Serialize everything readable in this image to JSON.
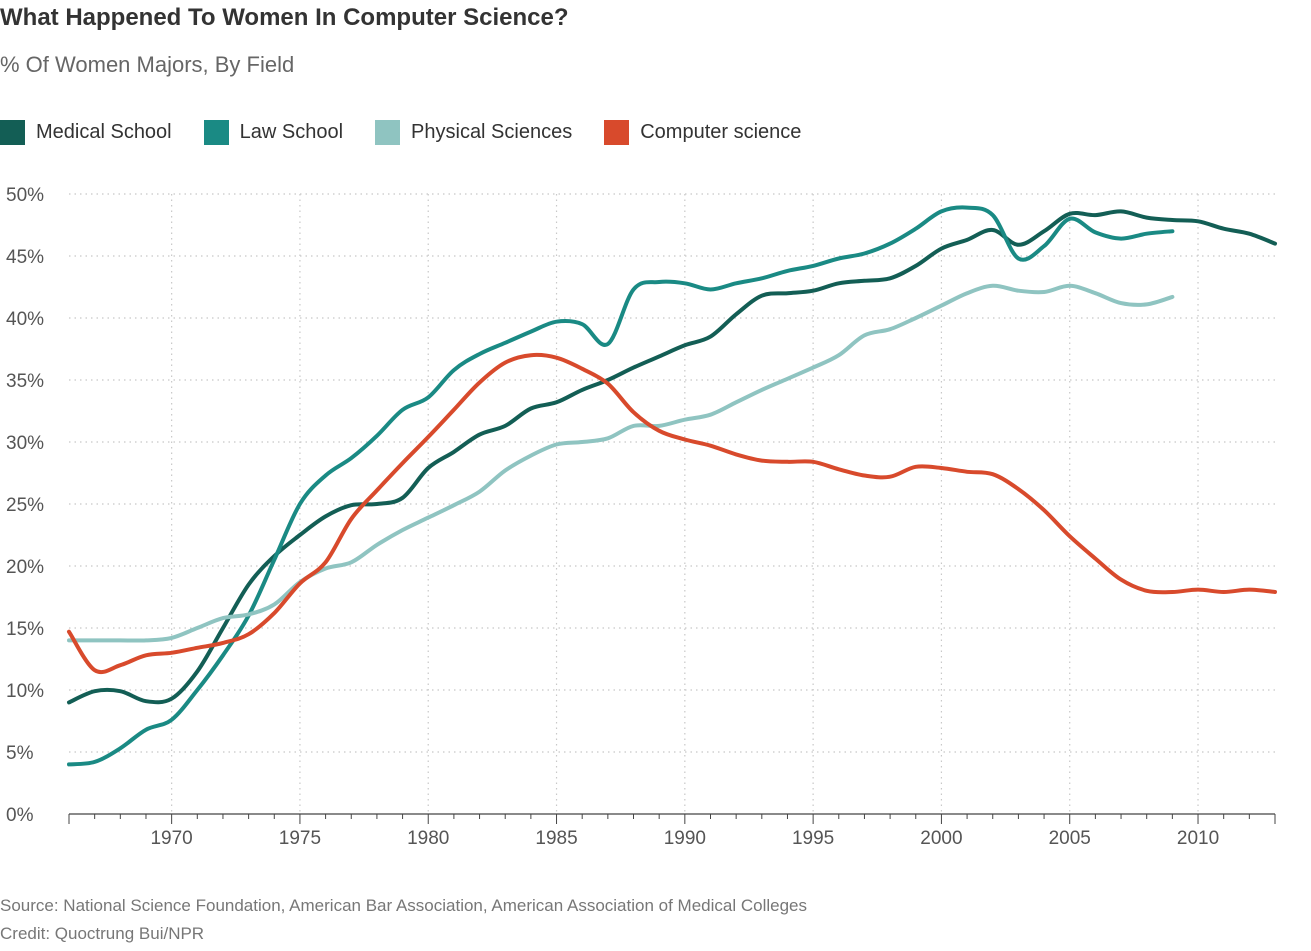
{
  "header": {
    "title": "What Happened To Women In Computer Science?",
    "subtitle": "% Of Women Majors, By Field"
  },
  "footer": {
    "source": "Source: National Science Foundation, American Bar Association, American Association of Medical Colleges",
    "credit": "Credit: Quoctrung Bui/NPR"
  },
  "chart_data": {
    "type": "line",
    "title": "What Happened To Women In Computer Science?",
    "subtitle": "% Of Women Majors, By Field",
    "xlabel": "",
    "ylabel": "",
    "xlim": [
      1966,
      2013
    ],
    "ylim": [
      0,
      50
    ],
    "x_ticks": [
      1970,
      1975,
      1980,
      1985,
      1990,
      1995,
      2000,
      2005,
      2010
    ],
    "y_ticks": [
      0,
      5,
      10,
      15,
      20,
      25,
      30,
      35,
      40,
      45,
      50
    ],
    "y_tick_labels": [
      "0%",
      "5%",
      "10%",
      "15%",
      "20%",
      "25%",
      "30%",
      "35%",
      "40%",
      "45%",
      "50%"
    ],
    "grid": true,
    "legend_position": "top-left",
    "series": [
      {
        "name": "Medical School",
        "color": "#135e55",
        "points": [
          [
            1966,
            9.0
          ],
          [
            1967,
            9.9
          ],
          [
            1968,
            9.9
          ],
          [
            1969,
            9.1
          ],
          [
            1970,
            9.3
          ],
          [
            1971,
            11.5
          ],
          [
            1972,
            15.0
          ],
          [
            1973,
            18.5
          ],
          [
            1974,
            20.8
          ],
          [
            1975,
            22.5
          ],
          [
            1976,
            24.0
          ],
          [
            1977,
            24.9
          ],
          [
            1978,
            25.0
          ],
          [
            1979,
            25.5
          ],
          [
            1980,
            27.9
          ],
          [
            1981,
            29.2
          ],
          [
            1982,
            30.6
          ],
          [
            1983,
            31.3
          ],
          [
            1984,
            32.7
          ],
          [
            1985,
            33.2
          ],
          [
            1986,
            34.2
          ],
          [
            1987,
            35.0
          ],
          [
            1988,
            36.0
          ],
          [
            1989,
            36.9
          ],
          [
            1990,
            37.8
          ],
          [
            1991,
            38.5
          ],
          [
            1992,
            40.3
          ],
          [
            1993,
            41.8
          ],
          [
            1994,
            42.0
          ],
          [
            1995,
            42.2
          ],
          [
            1996,
            42.8
          ],
          [
            1997,
            43.0
          ],
          [
            1998,
            43.2
          ],
          [
            1999,
            44.2
          ],
          [
            2000,
            45.6
          ],
          [
            2001,
            46.3
          ],
          [
            2002,
            47.1
          ],
          [
            2003,
            45.9
          ],
          [
            2004,
            47.0
          ],
          [
            2005,
            48.4
          ],
          [
            2006,
            48.3
          ],
          [
            2007,
            48.6
          ],
          [
            2008,
            48.1
          ],
          [
            2009,
            47.9
          ],
          [
            2010,
            47.8
          ],
          [
            2011,
            47.2
          ],
          [
            2012,
            46.8
          ],
          [
            2013,
            46.0
          ]
        ]
      },
      {
        "name": "Law School",
        "color": "#1a8a84",
        "points": [
          [
            1966,
            4.0
          ],
          [
            1967,
            4.2
          ],
          [
            1968,
            5.3
          ],
          [
            1969,
            6.8
          ],
          [
            1970,
            7.6
          ],
          [
            1971,
            10.0
          ],
          [
            1972,
            12.8
          ],
          [
            1973,
            16.0
          ],
          [
            1974,
            20.5
          ],
          [
            1975,
            25.0
          ],
          [
            1976,
            27.3
          ],
          [
            1977,
            28.7
          ],
          [
            1978,
            30.5
          ],
          [
            1979,
            32.6
          ],
          [
            1980,
            33.6
          ],
          [
            1981,
            35.8
          ],
          [
            1982,
            37.1
          ],
          [
            1983,
            38.0
          ],
          [
            1984,
            38.9
          ],
          [
            1985,
            39.7
          ],
          [
            1986,
            39.5
          ],
          [
            1987,
            37.9
          ],
          [
            1988,
            42.3
          ],
          [
            1989,
            42.9
          ],
          [
            1990,
            42.8
          ],
          [
            1991,
            42.3
          ],
          [
            1992,
            42.8
          ],
          [
            1993,
            43.2
          ],
          [
            1994,
            43.8
          ],
          [
            1995,
            44.2
          ],
          [
            1996,
            44.8
          ],
          [
            1997,
            45.2
          ],
          [
            1998,
            46.0
          ],
          [
            1999,
            47.2
          ],
          [
            2000,
            48.6
          ],
          [
            2001,
            48.9
          ],
          [
            2002,
            48.3
          ],
          [
            2003,
            44.8
          ],
          [
            2004,
            45.8
          ],
          [
            2005,
            48.0
          ],
          [
            2006,
            46.9
          ],
          [
            2007,
            46.4
          ],
          [
            2008,
            46.8
          ],
          [
            2009,
            47.0
          ]
        ]
      },
      {
        "name": "Physical Sciences",
        "color": "#8fc4c1",
        "points": [
          [
            1966,
            14.0
          ],
          [
            1967,
            14.0
          ],
          [
            1968,
            14.0
          ],
          [
            1969,
            14.0
          ],
          [
            1970,
            14.2
          ],
          [
            1971,
            15.0
          ],
          [
            1972,
            15.8
          ],
          [
            1973,
            16.1
          ],
          [
            1974,
            16.9
          ],
          [
            1975,
            18.7
          ],
          [
            1976,
            19.8
          ],
          [
            1977,
            20.3
          ],
          [
            1978,
            21.7
          ],
          [
            1979,
            22.9
          ],
          [
            1980,
            23.9
          ],
          [
            1981,
            24.9
          ],
          [
            1982,
            26.0
          ],
          [
            1983,
            27.7
          ],
          [
            1984,
            28.9
          ],
          [
            1985,
            29.8
          ],
          [
            1986,
            30.0
          ],
          [
            1987,
            30.3
          ],
          [
            1988,
            31.3
          ],
          [
            1989,
            31.3
          ],
          [
            1990,
            31.8
          ],
          [
            1991,
            32.2
          ],
          [
            1992,
            33.2
          ],
          [
            1993,
            34.2
          ],
          [
            1994,
            35.1
          ],
          [
            1995,
            36.0
          ],
          [
            1996,
            37.0
          ],
          [
            1997,
            38.6
          ],
          [
            1998,
            39.1
          ],
          [
            1999,
            40.0
          ],
          [
            2000,
            41.0
          ],
          [
            2001,
            42.0
          ],
          [
            2002,
            42.6
          ],
          [
            2003,
            42.2
          ],
          [
            2004,
            42.1
          ],
          [
            2005,
            42.6
          ],
          [
            2006,
            42.0
          ],
          [
            2007,
            41.2
          ],
          [
            2008,
            41.1
          ],
          [
            2009,
            41.7
          ]
        ]
      },
      {
        "name": "Computer science",
        "color": "#d84a2c",
        "points": [
          [
            1966,
            14.7
          ],
          [
            1967,
            11.6
          ],
          [
            1968,
            12.0
          ],
          [
            1969,
            12.8
          ],
          [
            1970,
            13.0
          ],
          [
            1971,
            13.4
          ],
          [
            1972,
            13.8
          ],
          [
            1973,
            14.5
          ],
          [
            1974,
            16.2
          ],
          [
            1975,
            18.6
          ],
          [
            1976,
            20.3
          ],
          [
            1977,
            23.8
          ],
          [
            1978,
            26.1
          ],
          [
            1979,
            28.3
          ],
          [
            1980,
            30.4
          ],
          [
            1981,
            32.6
          ],
          [
            1982,
            34.8
          ],
          [
            1983,
            36.4
          ],
          [
            1984,
            37.0
          ],
          [
            1985,
            36.8
          ],
          [
            1986,
            35.9
          ],
          [
            1987,
            34.7
          ],
          [
            1988,
            32.4
          ],
          [
            1989,
            30.9
          ],
          [
            1990,
            30.2
          ],
          [
            1991,
            29.7
          ],
          [
            1992,
            29.0
          ],
          [
            1993,
            28.5
          ],
          [
            1994,
            28.4
          ],
          [
            1995,
            28.4
          ],
          [
            1996,
            27.8
          ],
          [
            1997,
            27.3
          ],
          [
            1998,
            27.2
          ],
          [
            1999,
            28.0
          ],
          [
            2000,
            27.9
          ],
          [
            2001,
            27.6
          ],
          [
            2002,
            27.4
          ],
          [
            2003,
            26.2
          ],
          [
            2004,
            24.5
          ],
          [
            2005,
            22.4
          ],
          [
            2006,
            20.6
          ],
          [
            2007,
            18.9
          ],
          [
            2008,
            18.0
          ],
          [
            2009,
            17.9
          ],
          [
            2010,
            18.1
          ],
          [
            2011,
            17.9
          ],
          [
            2012,
            18.1
          ],
          [
            2013,
            17.9
          ]
        ]
      }
    ]
  }
}
